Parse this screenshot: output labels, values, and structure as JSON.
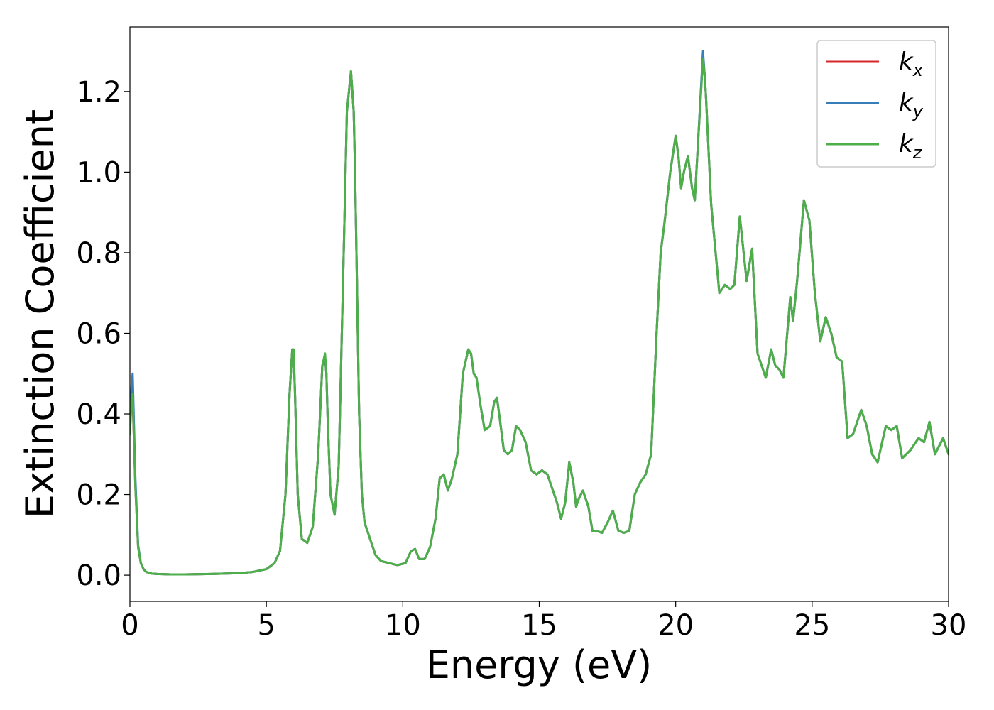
{
  "chart_data": {
    "type": "line",
    "xlabel": "Energy (eV)",
    "ylabel": "Extinction Coefficient",
    "xlim": [
      0,
      30
    ],
    "ylim": [
      -0.065,
      1.36
    ],
    "xticks": [
      {
        "value": 0,
        "label": "0"
      },
      {
        "value": 5,
        "label": "5"
      },
      {
        "value": 10,
        "label": "10"
      },
      {
        "value": 15,
        "label": "15"
      },
      {
        "value": 20,
        "label": "20"
      },
      {
        "value": 25,
        "label": "25"
      },
      {
        "value": 30,
        "label": "30"
      }
    ],
    "yticks": [
      {
        "value": 0.0,
        "label": "0.0"
      },
      {
        "value": 0.2,
        "label": "0.2"
      },
      {
        "value": 0.4,
        "label": "0.4"
      },
      {
        "value": 0.6,
        "label": "0.6"
      },
      {
        "value": 0.8,
        "label": "0.8"
      },
      {
        "value": 1.0,
        "label": "1.0"
      },
      {
        "value": 1.2,
        "label": "1.2"
      }
    ],
    "grid": false,
    "legend_position": "top-right",
    "series": [
      {
        "name": "k",
        "subscript": "x",
        "color": "#d62728",
        "x": [
          0.0,
          0.06,
          0.1,
          0.2,
          0.3,
          0.4,
          0.5,
          0.6,
          0.8,
          1.0,
          1.5,
          2.0,
          3.0,
          4.0,
          4.5,
          5.0,
          5.3,
          5.5,
          5.7,
          5.85,
          5.95,
          6.0,
          6.05,
          6.15,
          6.3,
          6.5,
          6.7,
          6.9,
          7.05,
          7.15,
          7.2,
          7.25,
          7.35,
          7.5,
          7.65,
          7.8,
          7.95,
          8.1,
          8.2,
          8.25,
          8.3,
          8.4,
          8.5,
          8.6,
          8.7,
          8.85,
          9.0,
          9.2,
          9.5,
          9.8,
          10.1,
          10.3,
          10.45,
          10.6,
          10.8,
          11.0,
          11.2,
          11.35,
          11.5,
          11.65,
          11.8,
          12.0,
          12.2,
          12.4,
          12.5,
          12.6,
          12.7,
          12.85,
          13.0,
          13.2,
          13.35,
          13.45,
          13.55,
          13.7,
          13.85,
          14.0,
          14.15,
          14.3,
          14.5,
          14.7,
          14.9,
          15.1,
          15.3,
          15.5,
          15.65,
          15.8,
          15.95,
          16.1,
          16.25,
          16.35,
          16.45,
          16.6,
          16.8,
          16.95,
          17.1,
          17.3,
          17.5,
          17.7,
          17.9,
          18.1,
          18.3,
          18.5,
          18.7,
          18.9,
          19.1,
          19.3,
          19.45,
          19.6,
          19.8,
          20.0,
          20.1,
          20.2,
          20.3,
          20.45,
          20.6,
          20.7,
          20.8,
          21.0,
          21.05,
          21.1,
          21.3,
          21.6,
          21.8,
          22.0,
          22.15,
          22.35,
          22.6,
          22.8,
          23.0,
          23.3,
          23.5,
          23.65,
          23.8,
          23.95,
          24.2,
          24.3,
          24.45,
          24.7,
          24.9,
          25.1,
          25.3,
          25.5,
          25.7,
          25.9,
          26.1,
          26.3,
          26.5,
          26.8,
          27.0,
          27.2,
          27.4,
          27.7,
          27.9,
          28.1,
          28.3,
          28.6,
          28.9,
          29.1,
          29.3,
          29.5,
          29.8,
          30.0
        ],
        "y": [
          0.35,
          0.45,
          0.44,
          0.22,
          0.07,
          0.03,
          0.015,
          0.008,
          0.004,
          0.003,
          0.002,
          0.002,
          0.003,
          0.005,
          0.008,
          0.015,
          0.03,
          0.06,
          0.2,
          0.45,
          0.56,
          0.55,
          0.45,
          0.2,
          0.09,
          0.08,
          0.12,
          0.3,
          0.52,
          0.54,
          0.5,
          0.38,
          0.2,
          0.15,
          0.27,
          0.7,
          1.15,
          1.25,
          1.15,
          1.0,
          0.8,
          0.4,
          0.2,
          0.13,
          0.11,
          0.08,
          0.05,
          0.035,
          0.03,
          0.025,
          0.03,
          0.06,
          0.065,
          0.04,
          0.04,
          0.07,
          0.14,
          0.24,
          0.25,
          0.21,
          0.24,
          0.3,
          0.5,
          0.56,
          0.55,
          0.5,
          0.49,
          0.42,
          0.36,
          0.37,
          0.43,
          0.44,
          0.39,
          0.31,
          0.3,
          0.31,
          0.37,
          0.36,
          0.33,
          0.26,
          0.25,
          0.26,
          0.25,
          0.21,
          0.18,
          0.14,
          0.18,
          0.28,
          0.23,
          0.17,
          0.19,
          0.21,
          0.17,
          0.11,
          0.11,
          0.105,
          0.13,
          0.16,
          0.11,
          0.105,
          0.11,
          0.2,
          0.23,
          0.25,
          0.3,
          0.6,
          0.8,
          0.88,
          1.0,
          1.09,
          1.04,
          0.96,
          1.0,
          1.04,
          0.96,
          0.93,
          1.05,
          1.29,
          1.25,
          1.2,
          0.92,
          0.7,
          0.72,
          0.71,
          0.72,
          0.89,
          0.73,
          0.81,
          0.55,
          0.49,
          0.56,
          0.52,
          0.51,
          0.49,
          0.69,
          0.63,
          0.73,
          0.93,
          0.88,
          0.7,
          0.58,
          0.64,
          0.6,
          0.54,
          0.53,
          0.34,
          0.35,
          0.41,
          0.37,
          0.3,
          0.28,
          0.37,
          0.36,
          0.37,
          0.29,
          0.31,
          0.34,
          0.33,
          0.38,
          0.3,
          0.34,
          0.3
        ]
      },
      {
        "name": "k",
        "subscript": "y",
        "color": "#377eb8",
        "x": [
          0.0,
          0.06,
          0.1,
          0.2,
          0.3,
          0.4,
          0.5,
          0.6,
          0.8,
          1.0,
          1.5,
          2.0,
          3.0,
          4.0,
          4.5,
          5.0,
          5.3,
          5.5,
          5.7,
          5.85,
          5.95,
          6.0,
          6.05,
          6.15,
          6.3,
          6.5,
          6.7,
          6.9,
          7.05,
          7.15,
          7.2,
          7.25,
          7.35,
          7.5,
          7.65,
          7.8,
          7.95,
          8.1,
          8.2,
          8.25,
          8.3,
          8.4,
          8.5,
          8.6,
          8.7,
          8.85,
          9.0,
          9.2,
          9.5,
          9.8,
          10.1,
          10.3,
          10.45,
          10.6,
          10.8,
          11.0,
          11.2,
          11.35,
          11.5,
          11.65,
          11.8,
          12.0,
          12.2,
          12.4,
          12.5,
          12.6,
          12.7,
          12.85,
          13.0,
          13.2,
          13.35,
          13.45,
          13.55,
          13.7,
          13.85,
          14.0,
          14.15,
          14.3,
          14.5,
          14.7,
          14.9,
          15.1,
          15.3,
          15.5,
          15.65,
          15.8,
          15.95,
          16.1,
          16.25,
          16.35,
          16.45,
          16.6,
          16.8,
          16.95,
          17.1,
          17.3,
          17.5,
          17.7,
          17.9,
          18.1,
          18.3,
          18.5,
          18.7,
          18.9,
          19.1,
          19.3,
          19.45,
          19.6,
          19.8,
          20.0,
          20.1,
          20.2,
          20.3,
          20.45,
          20.6,
          20.7,
          20.8,
          21.0,
          21.05,
          21.1,
          21.3,
          21.6,
          21.8,
          22.0,
          22.15,
          22.35,
          22.6,
          22.8,
          23.0,
          23.3,
          23.5,
          23.65,
          23.8,
          23.95,
          24.2,
          24.3,
          24.45,
          24.7,
          24.9,
          25.1,
          25.3,
          25.5,
          25.7,
          25.9,
          26.1,
          26.3,
          26.5,
          26.8,
          27.0,
          27.2,
          27.4,
          27.7,
          27.9,
          28.1,
          28.3,
          28.6,
          28.9,
          29.1,
          29.3,
          29.5,
          29.8,
          30.0
        ],
        "y": [
          0.35,
          0.47,
          0.5,
          0.24,
          0.075,
          0.03,
          0.015,
          0.008,
          0.004,
          0.003,
          0.002,
          0.002,
          0.003,
          0.005,
          0.008,
          0.015,
          0.03,
          0.06,
          0.2,
          0.45,
          0.56,
          0.55,
          0.45,
          0.2,
          0.09,
          0.08,
          0.12,
          0.3,
          0.52,
          0.54,
          0.5,
          0.38,
          0.2,
          0.15,
          0.27,
          0.7,
          1.15,
          1.25,
          1.15,
          1.0,
          0.8,
          0.4,
          0.2,
          0.13,
          0.11,
          0.08,
          0.05,
          0.035,
          0.03,
          0.025,
          0.03,
          0.06,
          0.065,
          0.04,
          0.04,
          0.07,
          0.14,
          0.24,
          0.25,
          0.21,
          0.24,
          0.3,
          0.5,
          0.56,
          0.55,
          0.5,
          0.49,
          0.42,
          0.36,
          0.37,
          0.43,
          0.44,
          0.39,
          0.31,
          0.3,
          0.31,
          0.37,
          0.36,
          0.33,
          0.26,
          0.25,
          0.26,
          0.25,
          0.21,
          0.18,
          0.14,
          0.18,
          0.28,
          0.23,
          0.17,
          0.19,
          0.21,
          0.17,
          0.11,
          0.11,
          0.105,
          0.13,
          0.16,
          0.11,
          0.105,
          0.11,
          0.2,
          0.23,
          0.25,
          0.3,
          0.6,
          0.8,
          0.88,
          1.0,
          1.09,
          1.04,
          0.96,
          1.0,
          1.04,
          0.96,
          0.93,
          1.05,
          1.3,
          1.25,
          1.2,
          0.92,
          0.7,
          0.72,
          0.71,
          0.72,
          0.89,
          0.73,
          0.81,
          0.55,
          0.49,
          0.56,
          0.52,
          0.51,
          0.49,
          0.69,
          0.63,
          0.73,
          0.93,
          0.88,
          0.7,
          0.58,
          0.64,
          0.6,
          0.54,
          0.53,
          0.34,
          0.35,
          0.41,
          0.37,
          0.3,
          0.28,
          0.37,
          0.36,
          0.37,
          0.29,
          0.31,
          0.34,
          0.33,
          0.38,
          0.3,
          0.34,
          0.3
        ]
      },
      {
        "name": "k",
        "subscript": "z",
        "color": "#4daf4a",
        "x": [
          0.0,
          0.06,
          0.1,
          0.2,
          0.3,
          0.4,
          0.5,
          0.6,
          0.8,
          1.0,
          1.5,
          2.0,
          3.0,
          4.0,
          4.5,
          5.0,
          5.3,
          5.5,
          5.7,
          5.85,
          5.95,
          6.0,
          6.05,
          6.15,
          6.3,
          6.5,
          6.7,
          6.9,
          7.05,
          7.15,
          7.2,
          7.25,
          7.35,
          7.5,
          7.65,
          7.8,
          7.95,
          8.1,
          8.2,
          8.25,
          8.3,
          8.4,
          8.5,
          8.6,
          8.7,
          8.85,
          9.0,
          9.2,
          9.5,
          9.8,
          10.1,
          10.3,
          10.45,
          10.6,
          10.8,
          11.0,
          11.2,
          11.35,
          11.5,
          11.65,
          11.8,
          12.0,
          12.2,
          12.4,
          12.5,
          12.6,
          12.7,
          12.85,
          13.0,
          13.2,
          13.35,
          13.45,
          13.55,
          13.7,
          13.85,
          14.0,
          14.15,
          14.3,
          14.5,
          14.7,
          14.9,
          15.1,
          15.3,
          15.5,
          15.65,
          15.8,
          15.95,
          16.1,
          16.25,
          16.35,
          16.45,
          16.6,
          16.8,
          16.95,
          17.1,
          17.3,
          17.5,
          17.7,
          17.9,
          18.1,
          18.3,
          18.5,
          18.7,
          18.9,
          19.1,
          19.3,
          19.45,
          19.6,
          19.8,
          20.0,
          20.1,
          20.2,
          20.3,
          20.45,
          20.6,
          20.7,
          20.8,
          21.0,
          21.05,
          21.1,
          21.3,
          21.6,
          21.8,
          22.0,
          22.15,
          22.35,
          22.6,
          22.8,
          23.0,
          23.3,
          23.5,
          23.65,
          23.8,
          23.95,
          24.2,
          24.3,
          24.45,
          24.7,
          24.9,
          25.1,
          25.3,
          25.5,
          25.7,
          25.9,
          26.1,
          26.3,
          26.5,
          26.8,
          27.0,
          27.2,
          27.4,
          27.7,
          27.9,
          28.1,
          28.3,
          28.6,
          28.9,
          29.1,
          29.3,
          29.5,
          29.8,
          30.0
        ],
        "y": [
          0.35,
          0.44,
          0.45,
          0.22,
          0.07,
          0.03,
          0.015,
          0.008,
          0.004,
          0.003,
          0.002,
          0.002,
          0.003,
          0.005,
          0.008,
          0.015,
          0.03,
          0.06,
          0.2,
          0.45,
          0.56,
          0.56,
          0.45,
          0.2,
          0.09,
          0.08,
          0.12,
          0.3,
          0.52,
          0.55,
          0.5,
          0.38,
          0.2,
          0.15,
          0.27,
          0.7,
          1.15,
          1.25,
          1.15,
          1.0,
          0.8,
          0.4,
          0.2,
          0.13,
          0.11,
          0.08,
          0.05,
          0.035,
          0.03,
          0.025,
          0.03,
          0.06,
          0.065,
          0.04,
          0.04,
          0.07,
          0.14,
          0.24,
          0.25,
          0.21,
          0.24,
          0.3,
          0.5,
          0.56,
          0.55,
          0.5,
          0.49,
          0.42,
          0.36,
          0.37,
          0.43,
          0.44,
          0.39,
          0.31,
          0.3,
          0.31,
          0.37,
          0.36,
          0.33,
          0.26,
          0.25,
          0.26,
          0.25,
          0.21,
          0.18,
          0.14,
          0.18,
          0.28,
          0.23,
          0.17,
          0.19,
          0.21,
          0.17,
          0.11,
          0.11,
          0.105,
          0.13,
          0.16,
          0.11,
          0.105,
          0.11,
          0.2,
          0.23,
          0.25,
          0.3,
          0.6,
          0.8,
          0.88,
          1.0,
          1.09,
          1.04,
          0.96,
          1.0,
          1.04,
          0.96,
          0.93,
          1.05,
          1.28,
          1.25,
          1.2,
          0.92,
          0.7,
          0.72,
          0.71,
          0.72,
          0.89,
          0.73,
          0.81,
          0.55,
          0.49,
          0.56,
          0.52,
          0.51,
          0.49,
          0.69,
          0.63,
          0.73,
          0.93,
          0.88,
          0.7,
          0.58,
          0.64,
          0.6,
          0.54,
          0.53,
          0.34,
          0.35,
          0.41,
          0.37,
          0.3,
          0.28,
          0.37,
          0.36,
          0.37,
          0.29,
          0.31,
          0.34,
          0.33,
          0.38,
          0.3,
          0.34,
          0.3
        ]
      }
    ]
  }
}
